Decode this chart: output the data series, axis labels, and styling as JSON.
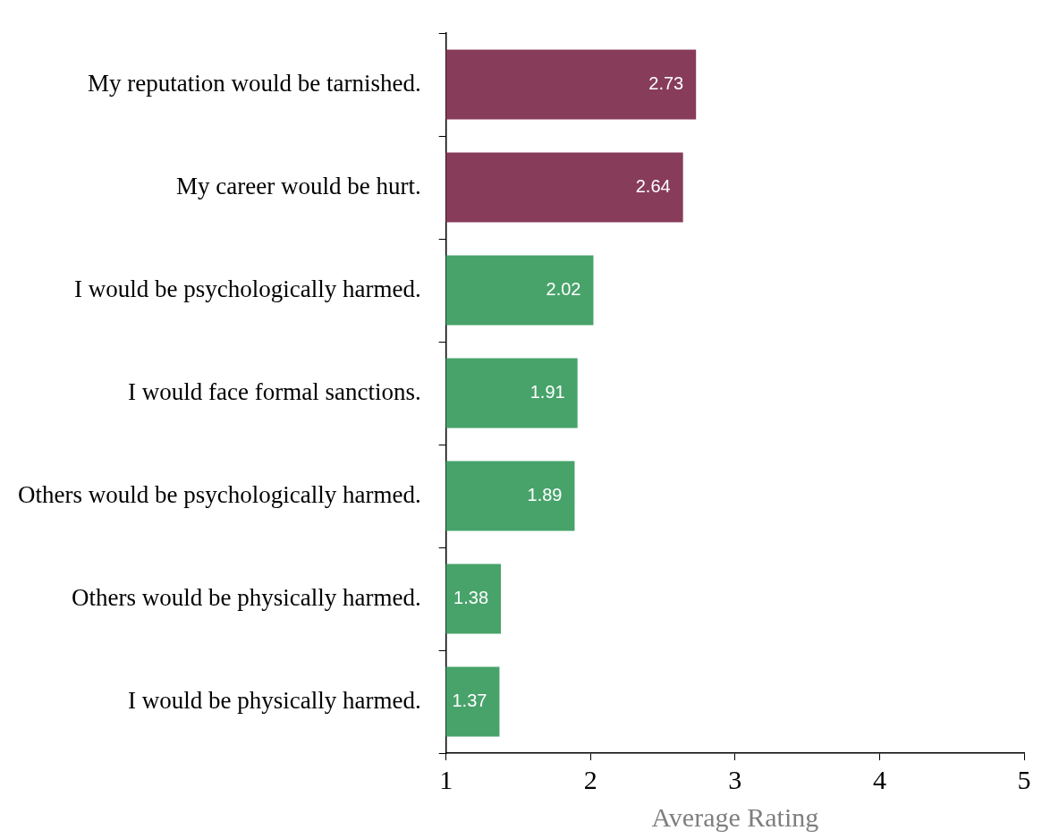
{
  "chart_data": {
    "type": "bar",
    "orientation": "horizontal",
    "xlabel": "Average Rating",
    "categories": [
      "My reputation would be tarnished.",
      "My career would be hurt.",
      "I would be psychologically harmed.",
      "I would face formal sanctions.",
      "Others would be psychologically harmed.",
      "Others would be physically harmed.",
      "I would be physically harmed."
    ],
    "values": [
      2.73,
      2.64,
      2.02,
      1.91,
      1.89,
      1.38,
      1.37
    ],
    "colors": [
      "#873c5a",
      "#873c5a",
      "#47a36a",
      "#47a36a",
      "#47a36a",
      "#47a36a",
      "#47a36a"
    ],
    "xlim": [
      1,
      5
    ],
    "xticks": [
      1,
      2,
      3,
      4,
      5
    ],
    "data_labels": true
  }
}
